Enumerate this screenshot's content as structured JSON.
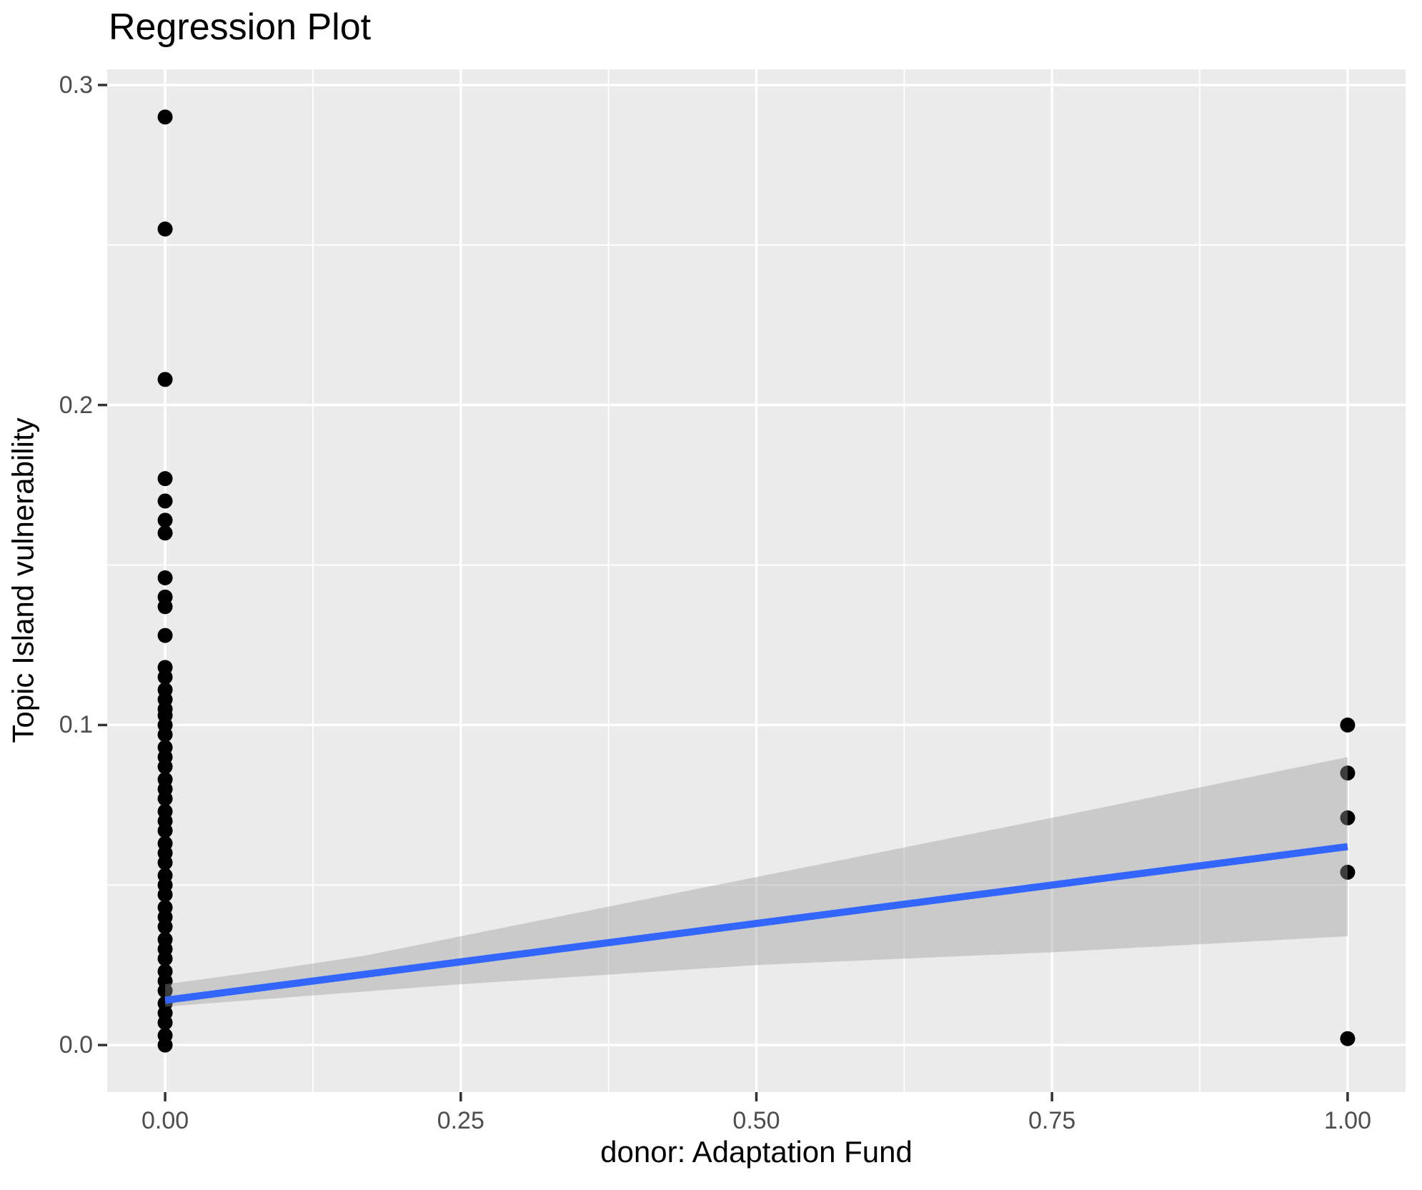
{
  "title": "Regression Plot",
  "chart_data": {
    "type": "scatter",
    "title": "Regression Plot",
    "xlabel": "donor: Adaptation Fund",
    "ylabel": "Topic Island vulnerability",
    "xlim": [
      -0.049,
      1.049
    ],
    "ylim": [
      -0.0147,
      0.3049
    ],
    "grid": true,
    "legend": "none",
    "x_ticks": [
      {
        "value": 0.0,
        "label": "0.00"
      },
      {
        "value": 0.25,
        "label": "0.25"
      },
      {
        "value": 0.5,
        "label": "0.50"
      },
      {
        "value": 0.75,
        "label": "0.75"
      },
      {
        "value": 1.0,
        "label": "1.00"
      }
    ],
    "y_ticks": [
      {
        "value": 0.0,
        "label": "0.0"
      },
      {
        "value": 0.1,
        "label": "0.1"
      },
      {
        "value": 0.2,
        "label": "0.2"
      },
      {
        "value": 0.3,
        "label": "0.3"
      }
    ],
    "series": [
      {
        "name": "observations at donor=0",
        "type": "scatter",
        "x": 0,
        "y": [
          0.29,
          0.255,
          0.208,
          0.177,
          0.17,
          0.164,
          0.16,
          0.146,
          0.14,
          0.137,
          0.128,
          0.118,
          0.115,
          0.111,
          0.108,
          0.105,
          0.103,
          0.1,
          0.097,
          0.093,
          0.09,
          0.087,
          0.083,
          0.08,
          0.077,
          0.073,
          0.07,
          0.067,
          0.063,
          0.06,
          0.057,
          0.053,
          0.05,
          0.047,
          0.043,
          0.04,
          0.037,
          0.033,
          0.03,
          0.027,
          0.023,
          0.02,
          0.017,
          0.013,
          0.01,
          0.007,
          0.003,
          0.0
        ]
      },
      {
        "name": "observations at donor=1",
        "type": "scatter",
        "x": 1,
        "y": [
          0.1,
          0.085,
          0.071,
          0.054,
          0.002
        ]
      },
      {
        "name": "regression line",
        "type": "line",
        "points": [
          [
            0,
            0.014
          ],
          [
            1,
            0.062
          ]
        ]
      },
      {
        "name": "confidence band",
        "type": "area",
        "top": [
          [
            0,
            0.019
          ],
          [
            0.08,
            0.023
          ],
          [
            0.17,
            0.028
          ],
          [
            0.25,
            0.034
          ],
          [
            0.5,
            0.0525
          ],
          [
            0.75,
            0.071
          ],
          [
            1,
            0.09
          ]
        ],
        "bottom": [
          [
            0,
            0.012
          ],
          [
            0.25,
            0.019
          ],
          [
            0.5,
            0.025
          ],
          [
            0.75,
            0.029
          ],
          [
            1,
            0.034
          ]
        ]
      }
    ]
  },
  "colors": {
    "background": "#FFFFFF",
    "panel_background": "#EBEBEB",
    "gridline": "#FFFFFF",
    "point": "#000000",
    "regression_line": "#3366FF",
    "confidence_band": "#999999",
    "confidence_band_alpha": 0.4,
    "tick_label": "#4D4D4D",
    "tick_mark": "#333333",
    "title_text": "#000000"
  }
}
